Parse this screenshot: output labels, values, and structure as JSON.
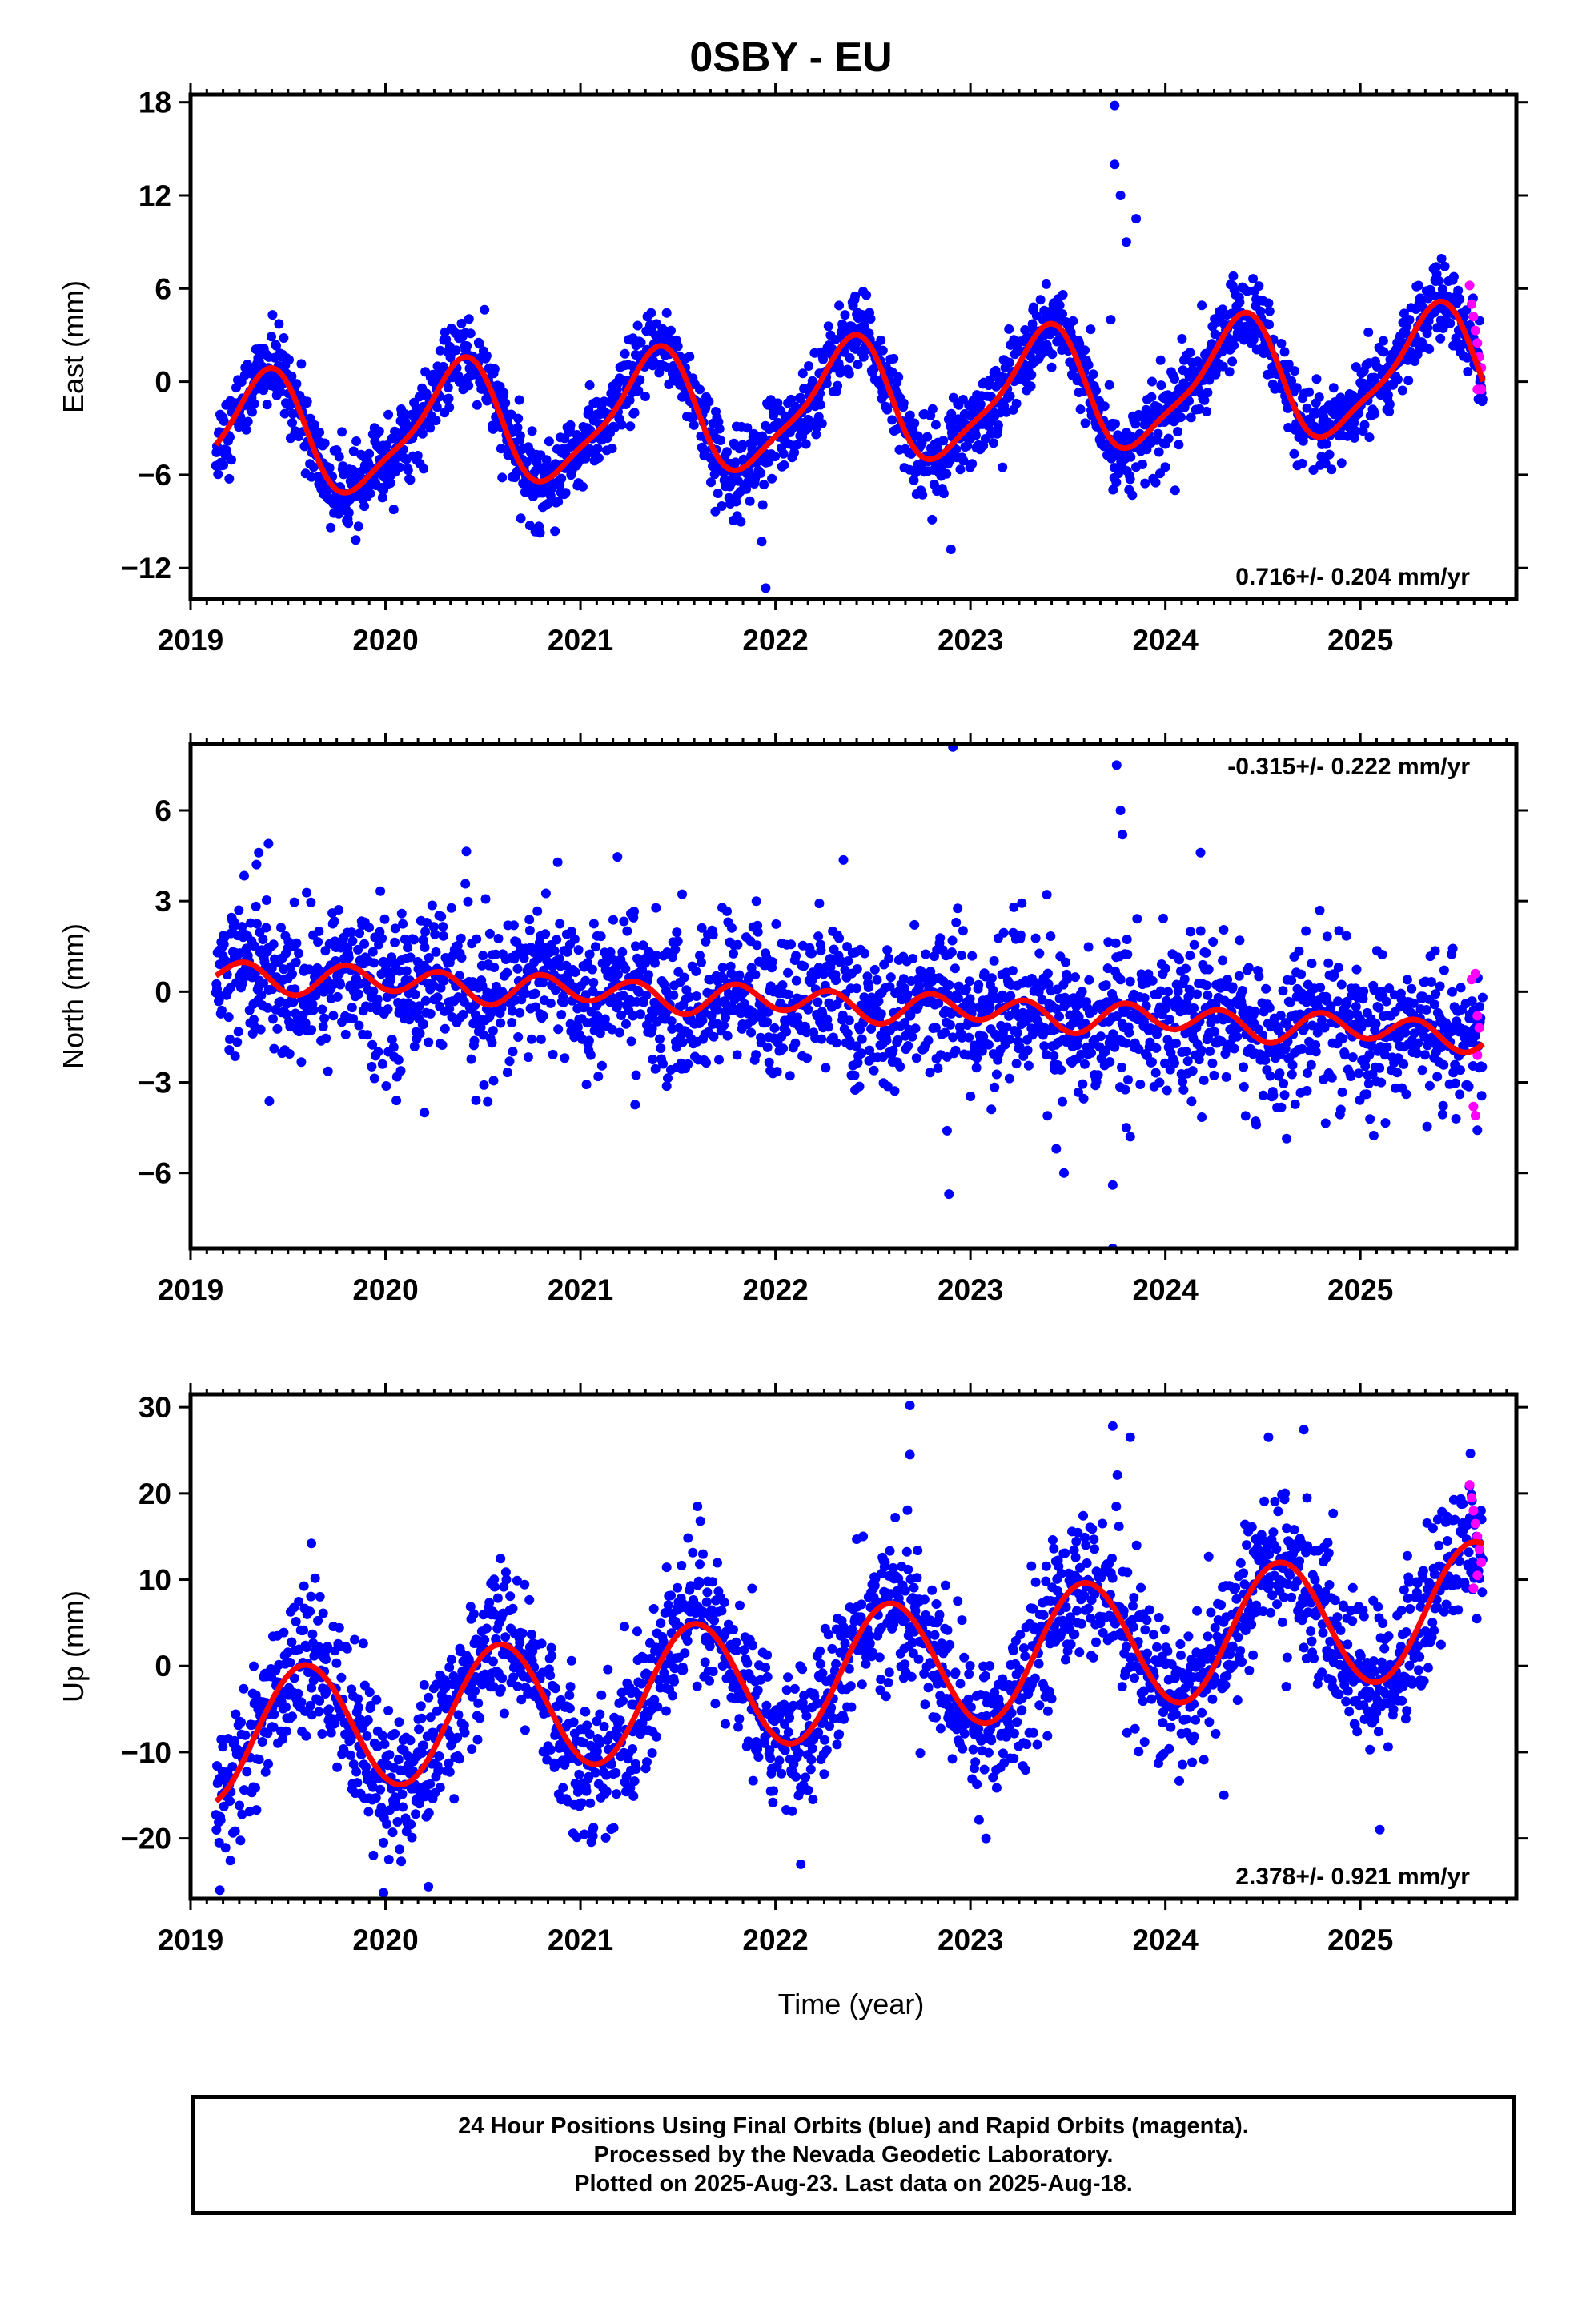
{
  "title": "0SBY - EU",
  "xlabel": "Time (year)",
  "footer": {
    "line1": "24 Hour Positions Using Final Orbits (blue) and Rapid Orbits (magenta).",
    "line2": "Processed by the Nevada Geodetic Laboratory.",
    "line3": "Plotted on 2025-Aug-23. Last data on 2025-Aug-18."
  },
  "colors": {
    "final_orbits": "#0000ff",
    "rapid_orbits": "#ff00ff",
    "model": "#ff0000",
    "frame": "#000000"
  },
  "chart_data": [
    {
      "type": "scatter",
      "ylabel": "East (mm)",
      "rate_label": "0.716+/- 0.204 mm/yr",
      "rate_position": "bottom-right",
      "xlim": [
        2019.0,
        2025.8
      ],
      "ylim": [
        -14,
        18.5
      ],
      "yticks": [
        18,
        12,
        6,
        0,
        -6,
        -12
      ],
      "xticks": [
        2019,
        2020,
        2021,
        2022,
        2023,
        2024,
        2025
      ],
      "data_span": [
        2019.13,
        2025.63
      ],
      "model": {
        "rate": 0.716,
        "offset": -3.8,
        "annual_cos": -2.58,
        "annual_sin": 2.81,
        "semi_cos": 0.8,
        "semi_sin": -0.5
      },
      "scatter": 1.3,
      "extra_points": [
        [
          2023.74,
          17.8
        ],
        [
          2023.74,
          14
        ],
        [
          2023.77,
          12
        ],
        [
          2021.93,
          -10.3
        ],
        [
          2021.95,
          -13.3
        ],
        [
          2022.9,
          -10.8
        ],
        [
          2023.85,
          10.5
        ],
        [
          2023.8,
          9
        ],
        [
          2024.0,
          -5.5
        ],
        [
          2024.05,
          -7
        ],
        [
          2023.72,
          4
        ],
        [
          2023.9,
          -2
        ],
        [
          2023.95,
          -6.5
        ]
      ],
      "rapid_points": [
        [
          2025.56,
          6.2
        ],
        [
          2025.57,
          5.0
        ],
        [
          2025.58,
          4.2
        ],
        [
          2025.59,
          3.3
        ],
        [
          2025.6,
          2.5
        ],
        [
          2025.61,
          1.6
        ],
        [
          2025.62,
          0.9
        ],
        [
          2025.6,
          -0.5
        ],
        [
          2025.62,
          -0.5
        ]
      ]
    },
    {
      "type": "scatter",
      "ylabel": "North (mm)",
      "rate_label": "-0.315+/- 0.222 mm/yr",
      "rate_position": "top-right",
      "xlim": [
        2019.0,
        2025.8
      ],
      "ylim": [
        -8.5,
        8.2
      ],
      "yticks": [
        6,
        3,
        0,
        -3,
        -6
      ],
      "xticks": [
        2019,
        2020,
        2021,
        2022,
        2023,
        2024,
        2025
      ],
      "data_span": [
        2019.13,
        2025.63
      ],
      "model": {
        "rate": -0.315,
        "offset": 0.6,
        "annual_cos": 0.15,
        "annual_sin": 0.0,
        "semi_cos": -0.4,
        "semi_sin": -0.2
      },
      "scatter": 1.2,
      "extra_points": [
        [
          2022.91,
          8.1
        ],
        [
          2023.75,
          7.5
        ],
        [
          2019.35,
          4.6
        ],
        [
          2019.4,
          4.9
        ],
        [
          2023.77,
          6
        ],
        [
          2023.78,
          5.2
        ],
        [
          2024.18,
          4.6
        ],
        [
          2022.88,
          -4.6
        ],
        [
          2022.89,
          -6.7
        ],
        [
          2023.44,
          -5.2
        ],
        [
          2023.48,
          -6.0
        ],
        [
          2023.73,
          -6.4
        ],
        [
          2023.73,
          -8.5
        ],
        [
          2023.8,
          -4.5
        ],
        [
          2023.82,
          -4.8
        ],
        [
          2020.2,
          -4.0
        ],
        [
          2024.9,
          -3.9
        ]
      ],
      "rapid_points": [
        [
          2025.57,
          0.4
        ],
        [
          2025.59,
          0.6
        ],
        [
          2025.6,
          -0.8
        ],
        [
          2025.61,
          -1.2
        ],
        [
          2025.6,
          -2.1
        ],
        [
          2025.58,
          -3.8
        ],
        [
          2025.59,
          -4.1
        ]
      ]
    },
    {
      "type": "scatter",
      "ylabel": "Up (mm)",
      "rate_label": "2.378+/- 0.921 mm/yr",
      "rate_position": "bottom-right",
      "xlim": [
        2019.0,
        2025.8
      ],
      "ylim": [
        -27,
        31.5
      ],
      "yticks": [
        30,
        20,
        10,
        0,
        -10,
        -20
      ],
      "xticks": [
        2019,
        2020,
        2021,
        2022,
        2023,
        2024,
        2025
      ],
      "data_span": [
        2019.13,
        2025.63
      ],
      "model": {
        "rate": 2.378,
        "offset": -8.5,
        "annual_cos": -6.55,
        "annual_sin": -3.72,
        "semi_cos": 0.0,
        "semi_sin": 0.0
      },
      "scatter": 4.2,
      "extra_points": [
        [
          2022.69,
          30.2
        ],
        [
          2023.73,
          27.8
        ],
        [
          2024.71,
          27.4
        ],
        [
          2022.69,
          24.5
        ],
        [
          2023.82,
          26.5
        ],
        [
          2019.62,
          14.2
        ],
        [
          2021.6,
          18.5
        ],
        [
          2019.15,
          -26
        ],
        [
          2019.99,
          -26.3
        ],
        [
          2020.22,
          -25.6
        ],
        [
          2022.13,
          -23
        ],
        [
          2023.08,
          -20
        ],
        [
          2025.1,
          -19
        ],
        [
          2024.3,
          -15
        ]
      ],
      "rapid_points": [
        [
          2025.56,
          21
        ],
        [
          2025.57,
          19.5
        ],
        [
          2025.58,
          18
        ],
        [
          2025.59,
          16.5
        ],
        [
          2025.6,
          15
        ],
        [
          2025.61,
          13.5
        ],
        [
          2025.62,
          12
        ],
        [
          2025.6,
          10.5
        ],
        [
          2025.58,
          9
        ]
      ]
    }
  ]
}
